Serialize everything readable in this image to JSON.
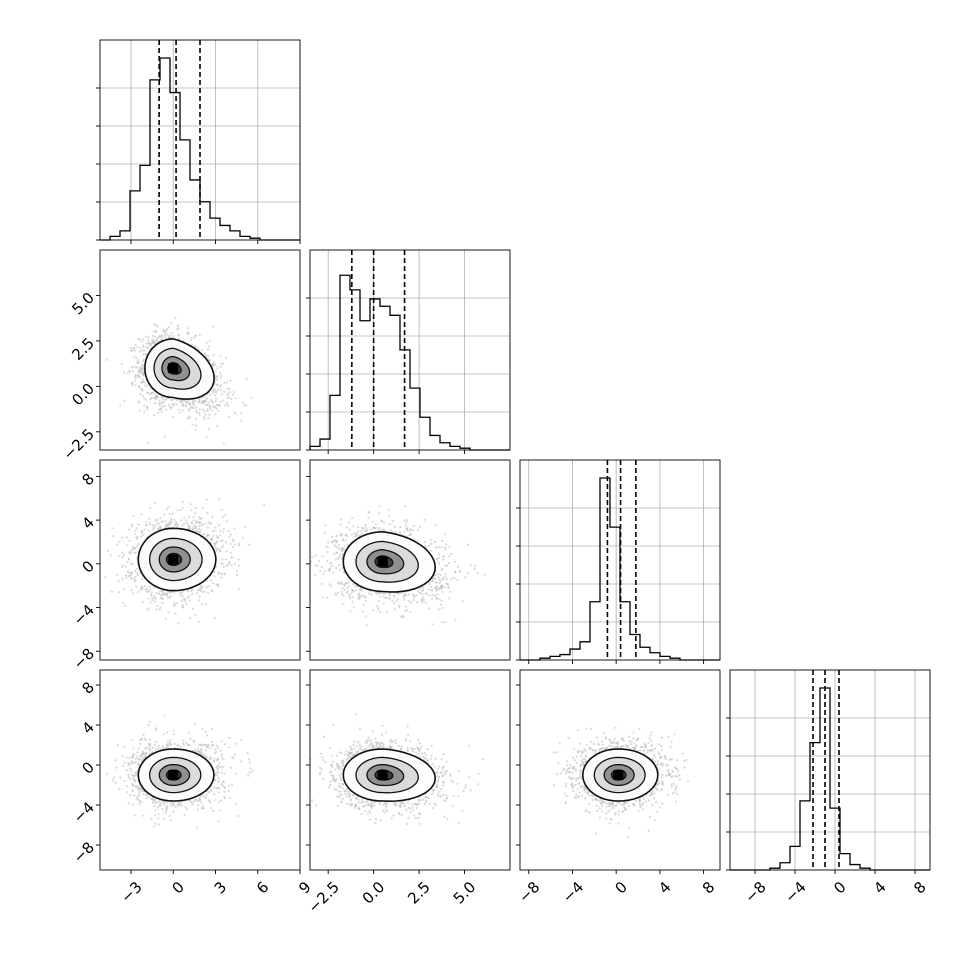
{
  "chart_data": {
    "type": "corner",
    "title": "",
    "parameters": [
      "",
      "",
      "",
      ""
    ],
    "colors": {
      "hist": "#000000",
      "scatter": "#b9b9b9",
      "density": "#111111",
      "grid": "#b0b0b0"
    },
    "grid": true,
    "ranges": [
      [
        -5.2,
        9.0
      ],
      [
        -3.5,
        7.5
      ],
      [
        -8.8,
        9.5
      ],
      [
        -10.5,
        9.5
      ]
    ],
    "ticks": [
      [
        -3,
        0,
        3,
        6,
        9
      ],
      [
        -2.5,
        0.0,
        2.5,
        5.0
      ],
      [
        -8,
        -4,
        0,
        4,
        8
      ],
      [
        -8,
        -4,
        0,
        4,
        8
      ]
    ],
    "tick_labels": [
      [
        "−3",
        "0",
        "3",
        "6",
        "9"
      ],
      [
        "−2.5",
        "0.0",
        "2.5",
        "5.0"
      ],
      [
        "−8",
        "−4",
        "0",
        "4",
        "8"
      ],
      [
        "−8",
        "−4",
        "0",
        "4",
        "8"
      ]
    ],
    "quantiles": [
      [
        -1.0,
        0.2,
        1.9
      ],
      [
        -1.2,
        0.0,
        1.7
      ],
      [
        -0.8,
        0.4,
        1.8
      ],
      [
        -2.2,
        -1.0,
        0.4
      ]
    ],
    "histograms": [
      {
        "edges_start": -5.2,
        "bin_width": 0.71,
        "counts": [
          0,
          0.02,
          0.05,
          0.27,
          0.41,
          0.88,
          1.0,
          0.81,
          0.55,
          0.33,
          0.21,
          0.12,
          0.08,
          0.05,
          0.02,
          0.01,
          0,
          0,
          0,
          0
        ]
      },
      {
        "edges_start": -3.5,
        "bin_width": 0.55,
        "counts": [
          0.02,
          0.06,
          0.3,
          0.96,
          0.88,
          0.71,
          0.83,
          0.79,
          0.74,
          0.55,
          0.34,
          0.18,
          0.08,
          0.04,
          0.02,
          0.01,
          0,
          0,
          0,
          0
        ]
      },
      {
        "edges_start": -8.8,
        "bin_width": 0.915,
        "counts": [
          0,
          0,
          0.01,
          0.02,
          0.03,
          0.06,
          0.1,
          0.32,
          1.0,
          0.73,
          0.32,
          0.14,
          0.07,
          0.04,
          0.02,
          0.01,
          0,
          0,
          0,
          0
        ]
      },
      {
        "edges_start": -10.5,
        "bin_width": 1.0,
        "counts": [
          0,
          0,
          0,
          0,
          0.01,
          0.04,
          0.13,
          0.38,
          0.7,
          1.0,
          0.34,
          0.09,
          0.03,
          0.01,
          0,
          0,
          0,
          0,
          0,
          0
        ]
      }
    ],
    "pairs": [
      {
        "row": 1,
        "col": 0,
        "center": [
          0.0,
          1.0
        ],
        "sigma": [
          1.3,
          1.3
        ],
        "skew": [
          0.8,
          -0.55
        ]
      },
      {
        "row": 2,
        "col": 0,
        "center": [
          0.0,
          0.4
        ],
        "sigma": [
          1.6,
          2.3
        ],
        "skew": [
          0.4,
          0.2
        ]
      },
      {
        "row": 2,
        "col": 1,
        "center": [
          0.5,
          0.2
        ],
        "sigma": [
          1.4,
          2.2
        ],
        "skew": [
          0.6,
          -0.3
        ]
      },
      {
        "row": 3,
        "col": 0,
        "center": [
          0.0,
          -1.0
        ],
        "sigma": [
          1.6,
          2.1
        ],
        "skew": [
          0.3,
          0.1
        ]
      },
      {
        "row": 3,
        "col": 1,
        "center": [
          0.5,
          -1.0
        ],
        "sigma": [
          1.4,
          2.1
        ],
        "skew": [
          0.6,
          -0.2
        ]
      },
      {
        "row": 3,
        "col": 2,
        "center": [
          0.2,
          -1.0
        ],
        "sigma": [
          2.1,
          2.1
        ],
        "skew": [
          0.2,
          0.1
        ]
      }
    ]
  }
}
